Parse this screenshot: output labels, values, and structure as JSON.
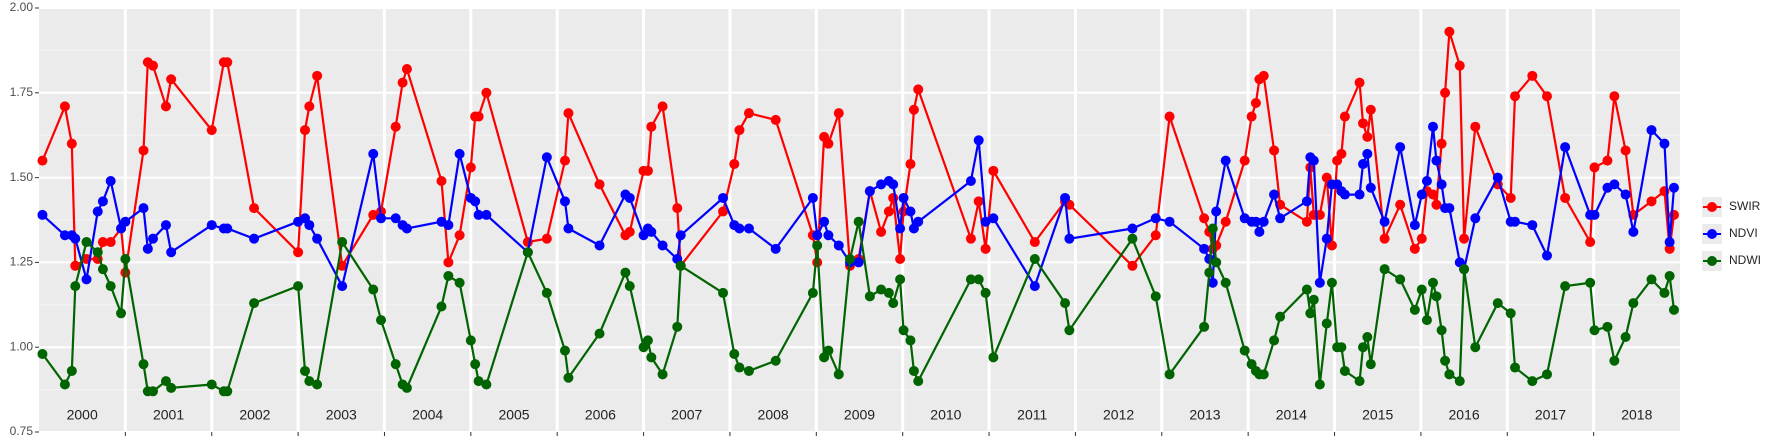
{
  "chart_data": {
    "type": "line",
    "x": [
      2000.04,
      2000.3,
      2000.38,
      2000.42,
      2000.55,
      2000.68,
      2000.74,
      2000.83,
      2000.95,
      2001.0,
      2001.21,
      2001.26,
      2001.32,
      2001.47,
      2001.53,
      2002.0,
      2002.14,
      2002.18,
      2002.49,
      2003.0,
      2003.08,
      2003.13,
      2003.22,
      2003.51,
      2003.87,
      2003.96,
      2004.13,
      2004.21,
      2004.26,
      2004.66,
      2004.74,
      2004.87,
      2005.0,
      2005.05,
      2005.09,
      2005.18,
      2005.66,
      2005.88,
      2006.09,
      2006.13,
      2006.49,
      2006.79,
      2006.84,
      2007.0,
      2007.05,
      2007.09,
      2007.22,
      2007.39,
      2007.43,
      2007.92,
      2008.05,
      2008.11,
      2008.22,
      2008.53,
      2008.96,
      2009.01,
      2009.09,
      2009.14,
      2009.26,
      2009.39,
      2009.49,
      2009.62,
      2009.75,
      2009.84,
      2009.89,
      2009.97,
      2010.01,
      2010.09,
      2010.13,
      2010.18,
      2010.79,
      2010.88,
      2010.96,
      2011.05,
      2011.53,
      2011.88,
      2011.93,
      2012.66,
      2012.93,
      2013.09,
      2013.49,
      2013.55,
      2013.59,
      2013.63,
      2013.74,
      2013.96,
      2014.04,
      2014.09,
      2014.13,
      2014.18,
      2014.3,
      2014.37,
      2014.68,
      2014.72,
      2014.76,
      2014.83,
      2014.91,
      2014.97,
      2015.03,
      2015.08,
      2015.12,
      2015.29,
      2015.33,
      2015.38,
      2015.42,
      2015.58,
      2015.76,
      2015.93,
      2016.01,
      2016.07,
      2016.14,
      2016.18,
      2016.24,
      2016.28,
      2016.33,
      2016.45,
      2016.5,
      2016.63,
      2016.89,
      2017.04,
      2017.09,
      2017.29,
      2017.46,
      2017.67,
      2017.96,
      2018.01,
      2018.16,
      2018.24,
      2018.37,
      2018.46,
      2018.67,
      2018.82,
      2018.88,
      2018.93
    ],
    "series": [
      {
        "name": "SWIR",
        "color": "#ff0000",
        "values": [
          1.55,
          1.71,
          1.6,
          1.24,
          1.26,
          1.26,
          1.31,
          1.31,
          1.35,
          1.22,
          1.58,
          1.84,
          1.83,
          1.71,
          1.79,
          1.64,
          1.84,
          1.84,
          1.41,
          1.28,
          1.64,
          1.71,
          1.8,
          1.24,
          1.39,
          1.4,
          1.65,
          1.78,
          1.82,
          1.49,
          1.25,
          1.33,
          1.53,
          1.68,
          1.68,
          1.75,
          1.31,
          1.32,
          1.55,
          1.69,
          1.48,
          1.33,
          1.34,
          1.52,
          1.52,
          1.65,
          1.71,
          1.41,
          1.24,
          1.4,
          1.54,
          1.64,
          1.69,
          1.67,
          1.33,
          1.25,
          1.62,
          1.6,
          1.69,
          1.24,
          1.26,
          1.46,
          1.34,
          1.4,
          1.44,
          1.26,
          1.4,
          1.54,
          1.7,
          1.76,
          1.32,
          1.43,
          1.29,
          1.52,
          1.31,
          1.43,
          1.42,
          1.24,
          1.33,
          1.68,
          1.38,
          1.34,
          1.29,
          1.3,
          1.37,
          1.55,
          1.68,
          1.72,
          1.79,
          1.8,
          1.58,
          1.42,
          1.37,
          1.53,
          1.39,
          1.39,
          1.5,
          1.3,
          1.55,
          1.57,
          1.68,
          1.78,
          1.66,
          1.62,
          1.7,
          1.32,
          1.42,
          1.29,
          1.32,
          1.46,
          1.45,
          1.42,
          1.6,
          1.75,
          1.93,
          1.83,
          1.32,
          1.65,
          1.48,
          1.44,
          1.74,
          1.8,
          1.74,
          1.44,
          1.31,
          1.53,
          1.55,
          1.74,
          1.58,
          1.39,
          1.43,
          1.46,
          1.29,
          1.39
        ]
      },
      {
        "name": "NDVI",
        "color": "#0000ff",
        "values": [
          1.39,
          1.33,
          1.33,
          1.32,
          1.2,
          1.4,
          1.43,
          1.49,
          1.35,
          1.37,
          1.41,
          1.29,
          1.32,
          1.36,
          1.28,
          1.36,
          1.35,
          1.35,
          1.32,
          1.37,
          1.38,
          1.36,
          1.32,
          1.18,
          1.57,
          1.38,
          1.38,
          1.36,
          1.35,
          1.37,
          1.36,
          1.57,
          1.44,
          1.43,
          1.39,
          1.39,
          1.28,
          1.56,
          1.43,
          1.35,
          1.3,
          1.45,
          1.44,
          1.33,
          1.35,
          1.34,
          1.3,
          1.26,
          1.33,
          1.44,
          1.36,
          1.35,
          1.35,
          1.29,
          1.44,
          1.33,
          1.37,
          1.33,
          1.3,
          1.25,
          1.25,
          1.46,
          1.48,
          1.49,
          1.48,
          1.35,
          1.44,
          1.4,
          1.35,
          1.37,
          1.49,
          1.61,
          1.37,
          1.38,
          1.18,
          1.44,
          1.32,
          1.35,
          1.38,
          1.37,
          1.29,
          1.26,
          1.19,
          1.4,
          1.55,
          1.38,
          1.37,
          1.37,
          1.34,
          1.37,
          1.45,
          1.38,
          1.43,
          1.56,
          1.55,
          1.19,
          1.32,
          1.48,
          1.48,
          1.46,
          1.45,
          1.45,
          1.54,
          1.57,
          1.47,
          1.37,
          1.59,
          1.36,
          1.45,
          1.49,
          1.65,
          1.55,
          1.48,
          1.41,
          1.41,
          1.25,
          1.23,
          1.38,
          1.5,
          1.37,
          1.37,
          1.36,
          1.27,
          1.59,
          1.39,
          1.39,
          1.47,
          1.48,
          1.45,
          1.34,
          1.64,
          1.6,
          1.31,
          1.47
        ]
      },
      {
        "name": "NDWI",
        "color": "#006400",
        "values": [
          0.98,
          0.89,
          0.93,
          1.18,
          1.31,
          1.28,
          1.23,
          1.18,
          1.1,
          1.26,
          0.95,
          0.87,
          0.87,
          0.9,
          0.88,
          0.89,
          0.87,
          0.87,
          1.13,
          1.18,
          0.93,
          0.9,
          0.89,
          1.31,
          1.17,
          1.08,
          0.95,
          0.89,
          0.88,
          1.12,
          1.21,
          1.19,
          1.02,
          0.95,
          0.9,
          0.89,
          1.28,
          1.16,
          0.99,
          0.91,
          1.04,
          1.22,
          1.18,
          1.0,
          1.02,
          0.97,
          0.92,
          1.06,
          1.24,
          1.16,
          0.98,
          0.94,
          0.93,
          0.96,
          1.16,
          1.3,
          0.97,
          0.99,
          0.92,
          1.26,
          1.37,
          1.15,
          1.17,
          1.16,
          1.13,
          1.2,
          1.05,
          1.02,
          0.93,
          0.9,
          1.2,
          1.2,
          1.16,
          0.97,
          1.26,
          1.13,
          1.05,
          1.32,
          1.15,
          0.92,
          1.06,
          1.22,
          1.35,
          1.25,
          1.19,
          0.99,
          0.95,
          0.93,
          0.92,
          0.92,
          1.02,
          1.09,
          1.17,
          1.1,
          1.14,
          0.89,
          1.07,
          1.19,
          1.0,
          1.0,
          0.93,
          0.9,
          1.0,
          1.03,
          0.95,
          1.23,
          1.2,
          1.11,
          1.17,
          1.08,
          1.19,
          1.15,
          1.05,
          0.96,
          0.92,
          0.9,
          1.23,
          1.0,
          1.13,
          1.1,
          0.94,
          0.9,
          0.92,
          1.18,
          1.19,
          1.05,
          1.06,
          0.96,
          1.03,
          1.13,
          1.2,
          1.16,
          1.21,
          1.11
        ]
      }
    ],
    "xlim": [
      2000,
      2019
    ],
    "xticks": [
      {
        "value": 2000.5,
        "label": "2000"
      },
      {
        "value": 2001.5,
        "label": "2001"
      },
      {
        "value": 2002.5,
        "label": "2002"
      },
      {
        "value": 2003.5,
        "label": "2003"
      },
      {
        "value": 2004.5,
        "label": "2004"
      },
      {
        "value": 2005.5,
        "label": "2005"
      },
      {
        "value": 2006.5,
        "label": "2006"
      },
      {
        "value": 2007.5,
        "label": "2007"
      },
      {
        "value": 2008.5,
        "label": "2008"
      },
      {
        "value": 2009.5,
        "label": "2009"
      },
      {
        "value": 2010.5,
        "label": "2010"
      },
      {
        "value": 2011.5,
        "label": "2011"
      },
      {
        "value": 2012.5,
        "label": "2012"
      },
      {
        "value": 2013.5,
        "label": "2013"
      },
      {
        "value": 2014.5,
        "label": "2014"
      },
      {
        "value": 2015.5,
        "label": "2015"
      },
      {
        "value": 2016.5,
        "label": "2016"
      },
      {
        "value": 2017.5,
        "label": "2017"
      },
      {
        "value": 2018.5,
        "label": "2018"
      }
    ],
    "xgrid": [
      2001,
      2002,
      2003,
      2004,
      2005,
      2006,
      2007,
      2008,
      2009,
      2010,
      2011,
      2012,
      2013,
      2014,
      2015,
      2016,
      2017,
      2018
    ],
    "ylim": [
      0.75,
      2.0
    ],
    "yticks": [
      {
        "value": 0.75,
        "label": "0.75"
      },
      {
        "value": 1.0,
        "label": "1.00"
      },
      {
        "value": 1.25,
        "label": "1.25"
      },
      {
        "value": 1.5,
        "label": "1.50"
      },
      {
        "value": 1.75,
        "label": "1.75"
      },
      {
        "value": 2.0,
        "label": "2.00"
      }
    ],
    "grid": true,
    "legend": "right"
  }
}
